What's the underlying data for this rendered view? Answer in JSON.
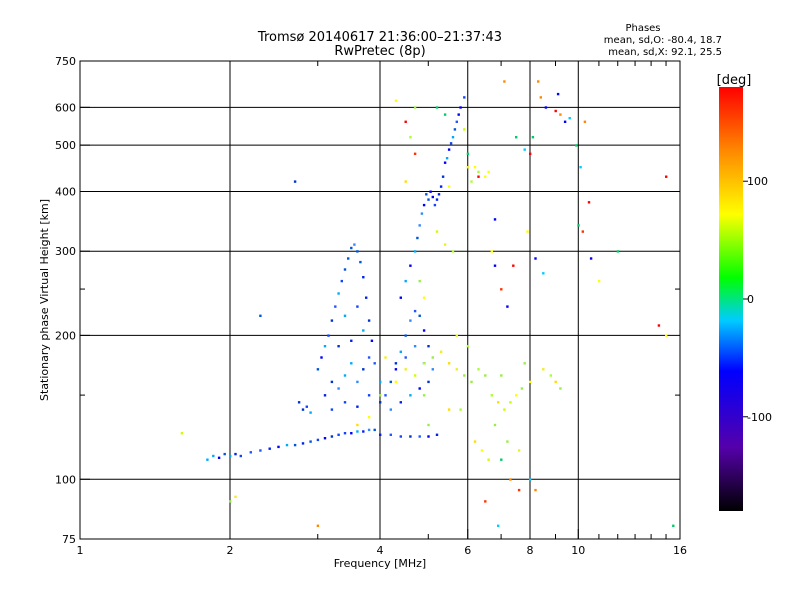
{
  "chart_data": {
    "type": "scatter",
    "title": "Tromsø 20140617 21:36:00–21:37:43",
    "subtitle": "RwPretec (8p)",
    "stats": {
      "heading": "Phases",
      "line_o": "mean, sd,O: -80.4, 18.7",
      "line_x": "mean, sd,X:  92.1, 25.5"
    },
    "xlabel": "Frequency [MHz]",
    "ylabel": "Stationary phase Virtual Height [km]",
    "x_scale": "log",
    "y_scale": "log",
    "xlim": [
      1,
      16
    ],
    "ylim": [
      75,
      750
    ],
    "x_ticks": [
      1,
      2,
      4,
      6,
      8,
      10,
      16
    ],
    "x_tick_labels": [
      "1",
      "2",
      "4",
      "6",
      "8",
      "10",
      "16"
    ],
    "x_minor_ticks": [
      3,
      5,
      7,
      9,
      11,
      12,
      13,
      14,
      15
    ],
    "y_ticks": [
      75,
      100,
      200,
      300,
      400,
      500,
      600,
      750
    ],
    "y_tick_labels": [
      "75",
      "100",
      "200",
      "300",
      "400",
      "500",
      "600",
      "750"
    ],
    "y_minor_ticks": [
      150,
      250
    ],
    "grid": true,
    "colorbar": {
      "label": "[deg]",
      "range": [
        -180,
        180
      ],
      "ticks": [
        100,
        0,
        -100
      ],
      "tick_labels": [
        "100",
        "0",
        "-100"
      ]
    },
    "series": [
      {
        "trace": "O",
        "description": "blue points, phase approx -80 to -120 deg",
        "points": [
          [
            1.8,
            110
          ],
          [
            1.85,
            112
          ],
          [
            1.9,
            111
          ],
          [
            1.95,
            113
          ],
          [
            2.0,
            112
          ],
          [
            2.05,
            113
          ],
          [
            2.1,
            112
          ],
          [
            2.2,
            114
          ],
          [
            2.3,
            115
          ],
          [
            2.4,
            116
          ],
          [
            2.5,
            117
          ],
          [
            2.6,
            118
          ],
          [
            2.7,
            118
          ],
          [
            2.8,
            119
          ],
          [
            2.9,
            120
          ],
          [
            3.0,
            121
          ],
          [
            3.1,
            122
          ],
          [
            3.2,
            123
          ],
          [
            3.3,
            124
          ],
          [
            3.4,
            125
          ],
          [
            3.5,
            125
          ],
          [
            3.6,
            126
          ],
          [
            3.7,
            126
          ],
          [
            3.8,
            127
          ],
          [
            3.9,
            127
          ],
          [
            4.0,
            124
          ],
          [
            4.2,
            124
          ],
          [
            4.4,
            123
          ],
          [
            4.6,
            123
          ],
          [
            4.8,
            123
          ],
          [
            5.0,
            123
          ],
          [
            5.2,
            124
          ],
          [
            3.0,
            170
          ],
          [
            3.05,
            180
          ],
          [
            3.1,
            190
          ],
          [
            3.15,
            200
          ],
          [
            3.2,
            215
          ],
          [
            3.25,
            230
          ],
          [
            3.3,
            245
          ],
          [
            3.35,
            260
          ],
          [
            3.4,
            275
          ],
          [
            3.45,
            290
          ],
          [
            3.5,
            305
          ],
          [
            3.55,
            310
          ],
          [
            3.6,
            300
          ],
          [
            3.65,
            285
          ],
          [
            3.7,
            265
          ],
          [
            3.75,
            240
          ],
          [
            3.8,
            215
          ],
          [
            3.85,
            195
          ],
          [
            3.1,
            150
          ],
          [
            3.2,
            160
          ],
          [
            3.3,
            155
          ],
          [
            3.4,
            165
          ],
          [
            3.5,
            175
          ],
          [
            3.6,
            160
          ],
          [
            3.7,
            170
          ],
          [
            3.8,
            180
          ],
          [
            3.9,
            175
          ],
          [
            4.0,
            160
          ],
          [
            3.2,
            140
          ],
          [
            3.4,
            145
          ],
          [
            3.6,
            142
          ],
          [
            3.8,
            150
          ],
          [
            4.0,
            145
          ],
          [
            3.3,
            190
          ],
          [
            3.5,
            195
          ],
          [
            3.7,
            205
          ],
          [
            3.4,
            220
          ],
          [
            3.6,
            230
          ],
          [
            4.1,
            150
          ],
          [
            4.2,
            160
          ],
          [
            4.3,
            170
          ],
          [
            4.4,
            185
          ],
          [
            4.5,
            200
          ],
          [
            4.6,
            215
          ],
          [
            4.7,
            225
          ],
          [
            4.8,
            220
          ],
          [
            4.9,
            205
          ],
          [
            5.0,
            190
          ],
          [
            4.2,
            140
          ],
          [
            4.4,
            145
          ],
          [
            4.6,
            150
          ],
          [
            4.8,
            155
          ],
          [
            5.0,
            160
          ],
          [
            4.3,
            175
          ],
          [
            4.5,
            180
          ],
          [
            4.7,
            190
          ],
          [
            4.9,
            175
          ],
          [
            5.1,
            170
          ],
          [
            4.4,
            240
          ],
          [
            4.5,
            260
          ],
          [
            4.6,
            280
          ],
          [
            4.7,
            300
          ],
          [
            4.75,
            320
          ],
          [
            4.8,
            340
          ],
          [
            4.85,
            360
          ],
          [
            4.9,
            375
          ],
          [
            5.0,
            385
          ],
          [
            5.1,
            390
          ],
          [
            5.2,
            385
          ],
          [
            4.95,
            395
          ],
          [
            5.05,
            400
          ],
          [
            5.15,
            375
          ],
          [
            5.25,
            395
          ],
          [
            5.3,
            410
          ],
          [
            5.35,
            430
          ],
          [
            5.4,
            460
          ],
          [
            5.5,
            490
          ],
          [
            5.6,
            520
          ],
          [
            5.7,
            560
          ],
          [
            5.8,
            600
          ],
          [
            5.9,
            630
          ],
          [
            5.75,
            580
          ],
          [
            5.65,
            540
          ],
          [
            5.55,
            505
          ],
          [
            5.45,
            470
          ],
          [
            2.7,
            420
          ],
          [
            2.3,
            220
          ],
          [
            2.8,
            140
          ],
          [
            2.85,
            142
          ],
          [
            2.9,
            138
          ],
          [
            2.75,
            145
          ]
        ]
      },
      {
        "trace": "X",
        "description": "yellow-green points, phase approx 60 to 120 deg",
        "points": [
          [
            4.3,
            160
          ],
          [
            4.5,
            170
          ],
          [
            4.7,
            165
          ],
          [
            4.9,
            175
          ],
          [
            5.1,
            180
          ],
          [
            5.3,
            185
          ],
          [
            5.5,
            175
          ],
          [
            5.7,
            170
          ],
          [
            5.9,
            165
          ],
          [
            6.1,
            160
          ],
          [
            6.3,
            170
          ],
          [
            6.5,
            165
          ],
          [
            6.7,
            150
          ],
          [
            6.9,
            145
          ],
          [
            7.1,
            140
          ],
          [
            7.3,
            145
          ],
          [
            7.5,
            150
          ],
          [
            7.7,
            155
          ],
          [
            8.0,
            160
          ],
          [
            8.5,
            170
          ],
          [
            8.8,
            165
          ],
          [
            9.0,
            160
          ],
          [
            9.2,
            155
          ],
          [
            6.1,
            420
          ],
          [
            6.3,
            440
          ],
          [
            6.5,
            430
          ],
          [
            6.0,
            450
          ],
          [
            5.5,
            410
          ],
          [
            5.2,
            330
          ],
          [
            5.4,
            310
          ],
          [
            5.6,
            300
          ],
          [
            4.8,
            260
          ],
          [
            4.9,
            240
          ],
          [
            5.7,
            200
          ],
          [
            6.0,
            190
          ],
          [
            3.6,
            130
          ],
          [
            3.8,
            135
          ],
          [
            4.1,
            180
          ],
          [
            4.9,
            150
          ],
          [
            4.0,
            150
          ],
          [
            5.0,
            130
          ],
          [
            5.5,
            140
          ],
          [
            5.8,
            140
          ],
          [
            6.2,
            120
          ],
          [
            6.4,
            115
          ],
          [
            6.6,
            110
          ],
          [
            6.8,
            130
          ],
          [
            7.2,
            120
          ],
          [
            7.6,
            115
          ],
          [
            1.6,
            125
          ],
          [
            2.0,
            90
          ],
          [
            2.05,
            92
          ],
          [
            4.5,
            420
          ],
          [
            4.6,
            520
          ],
          [
            4.7,
            600
          ],
          [
            5.9,
            540
          ],
          [
            6.2,
            450
          ],
          [
            6.6,
            440
          ],
          [
            7.0,
            165
          ],
          [
            7.8,
            175
          ]
        ]
      },
      {
        "trace": "scattered",
        "description": "isolated points of mixed phase",
        "points": [
          [
            4.3,
            620
          ],
          [
            4.5,
            560
          ],
          [
            4.7,
            480
          ],
          [
            5.2,
            600
          ],
          [
            5.4,
            580
          ],
          [
            6.0,
            480
          ],
          [
            6.3,
            430
          ],
          [
            6.7,
            300
          ],
          [
            6.8,
            280
          ],
          [
            7.0,
            250
          ],
          [
            7.2,
            230
          ],
          [
            7.4,
            280
          ],
          [
            7.5,
            520
          ],
          [
            7.8,
            490
          ],
          [
            8.0,
            480
          ],
          [
            8.2,
            290
          ],
          [
            8.5,
            270
          ],
          [
            8.6,
            600
          ],
          [
            9.0,
            590
          ],
          [
            9.2,
            580
          ],
          [
            9.6,
            570
          ],
          [
            9.9,
            500
          ],
          [
            10.0,
            340
          ],
          [
            10.2,
            330
          ],
          [
            10.5,
            380
          ],
          [
            10.6,
            290
          ],
          [
            11.0,
            260
          ],
          [
            12.0,
            300
          ],
          [
            14.5,
            210
          ],
          [
            15.0,
            200
          ],
          [
            15.0,
            430
          ],
          [
            15.5,
            80
          ],
          [
            8.1,
            520
          ],
          [
            8.4,
            630
          ],
          [
            9.4,
            560
          ],
          [
            10.1,
            450
          ],
          [
            6.5,
            90
          ],
          [
            6.9,
            80
          ],
          [
            7.0,
            110
          ],
          [
            7.3,
            100
          ],
          [
            7.6,
            95
          ],
          [
            8.0,
            100
          ],
          [
            8.2,
            95
          ],
          [
            7.1,
            680
          ],
          [
            8.3,
            680
          ],
          [
            9.1,
            640
          ],
          [
            10.3,
            560
          ],
          [
            3.0,
            80
          ],
          [
            6.8,
            350
          ],
          [
            7.9,
            330
          ]
        ]
      }
    ]
  }
}
